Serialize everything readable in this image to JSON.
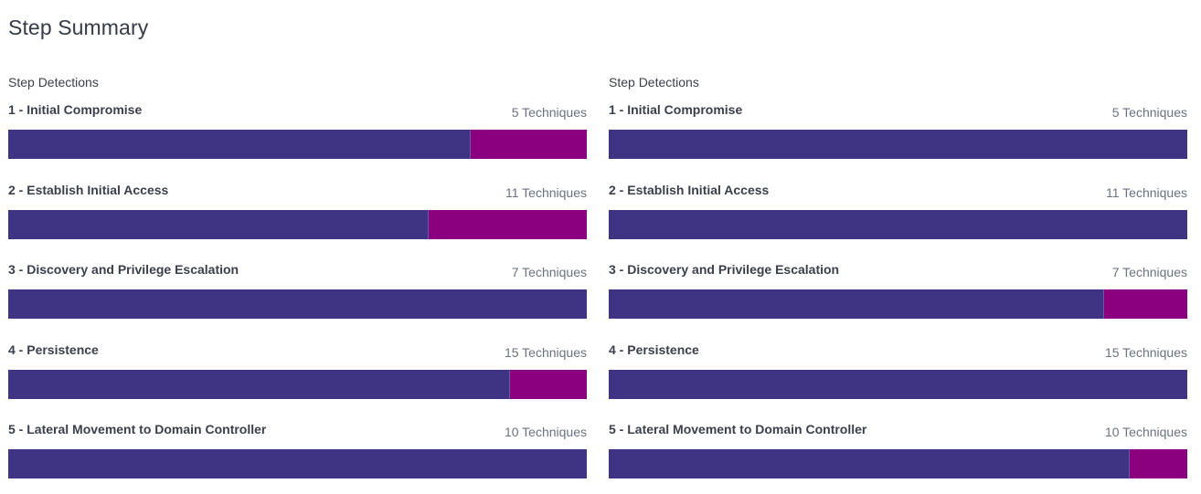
{
  "page": {
    "title": "Step Summary"
  },
  "colors": {
    "primary_segment": "#3f3484",
    "secondary_segment": "#8a007e"
  },
  "panels": [
    {
      "heading": "Step Detections",
      "steps": [
        {
          "label": "1 - Initial Compromise",
          "count": "5 Techniques",
          "primary_fraction": 0.8
        },
        {
          "label": "2 - Establish Initial Access",
          "count": "11 Techniques",
          "primary_fraction": 0.727
        },
        {
          "label": "3 - Discovery and Privilege Escalation",
          "count": "7 Techniques",
          "primary_fraction": 1.0
        },
        {
          "label": "4 - Persistence",
          "count": "15 Techniques",
          "primary_fraction": 0.867
        },
        {
          "label": "5 - Lateral Movement to Domain Controller",
          "count": "10 Techniques",
          "primary_fraction": 1.0
        }
      ]
    },
    {
      "heading": "Step Detections",
      "steps": [
        {
          "label": "1 - Initial Compromise",
          "count": "5 Techniques",
          "primary_fraction": 1.0
        },
        {
          "label": "2 - Establish Initial Access",
          "count": "11 Techniques",
          "primary_fraction": 1.0
        },
        {
          "label": "3 - Discovery and Privilege Escalation",
          "count": "7 Techniques",
          "primary_fraction": 0.857
        },
        {
          "label": "4 - Persistence",
          "count": "15 Techniques",
          "primary_fraction": 1.0
        },
        {
          "label": "5 - Lateral Movement to Domain Controller",
          "count": "10 Techniques",
          "primary_fraction": 0.9
        }
      ]
    }
  ]
}
